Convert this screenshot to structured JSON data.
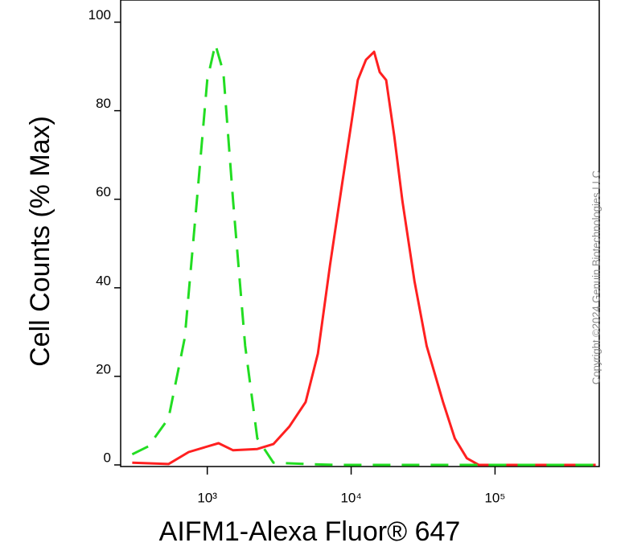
{
  "chart_data": {
    "type": "line",
    "xlabel": "AIFM1-Alexa Fluor® 647",
    "ylabel": "Cell Counts (% Max)",
    "copyright": "Copyright ©2024 Genuin Biotechnologies LLC",
    "xscale": "log",
    "xlim": [
      250,
      530000
    ],
    "ylim": [
      0,
      105
    ],
    "xticks": [
      {
        "value": 1000,
        "label": "10³"
      },
      {
        "value": 10000,
        "label": "10⁴"
      },
      {
        "value": 100000,
        "label": "10⁵"
      }
    ],
    "yticks": [
      0,
      20,
      40,
      60,
      80,
      100
    ],
    "series": [
      {
        "color": "#ff2020",
        "linestyle": "solid",
        "x": [
          301,
          538,
          743,
          962,
          1198,
          1511,
          2226,
          2881,
          3725,
          4825,
          5870,
          7120,
          8640,
          10000,
          11120,
          12680,
          14440,
          15800,
          17520,
          19950,
          22700,
          27550,
          33460,
          43510,
          52500,
          63700,
          77300,
          501000
        ],
        "values": [
          0.5,
          0.2,
          2.9,
          4,
          4.9,
          3.3,
          3.6,
          4.7,
          8.7,
          14.2,
          25.1,
          45,
          63.3,
          76.9,
          86.9,
          91.5,
          93.3,
          88.7,
          86.9,
          74.2,
          59.6,
          41.5,
          26.9,
          14.2,
          6,
          1.5,
          0,
          0
        ]
      },
      {
        "color": "#22dd22",
        "linestyle": "dashed",
        "x": [
          301,
          390,
          538,
          697,
          846,
          1000,
          1138,
          1294,
          1511,
          1833,
          2226,
          2881,
          4825,
          8090,
          22700,
          501000
        ],
        "values": [
          2.4,
          4.2,
          10.5,
          28.7,
          59.6,
          87,
          95,
          88.7,
          59.6,
          26.9,
          6,
          0.5,
          0.2,
          0,
          0,
          0
        ]
      }
    ]
  }
}
